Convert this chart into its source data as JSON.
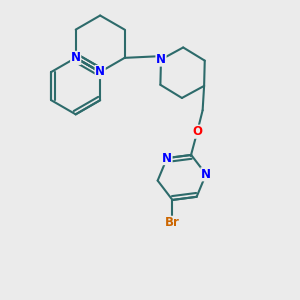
{
  "bg_color": "#ebebeb",
  "bond_color": "#2d6b6b",
  "n_color": "#0000ff",
  "o_color": "#ff0000",
  "br_color": "#cc6600",
  "bond_width": 1.5,
  "figsize": [
    3.0,
    3.0
  ],
  "dpi": 100,
  "xlim": [
    0,
    10
  ],
  "ylim": [
    0,
    10
  ]
}
